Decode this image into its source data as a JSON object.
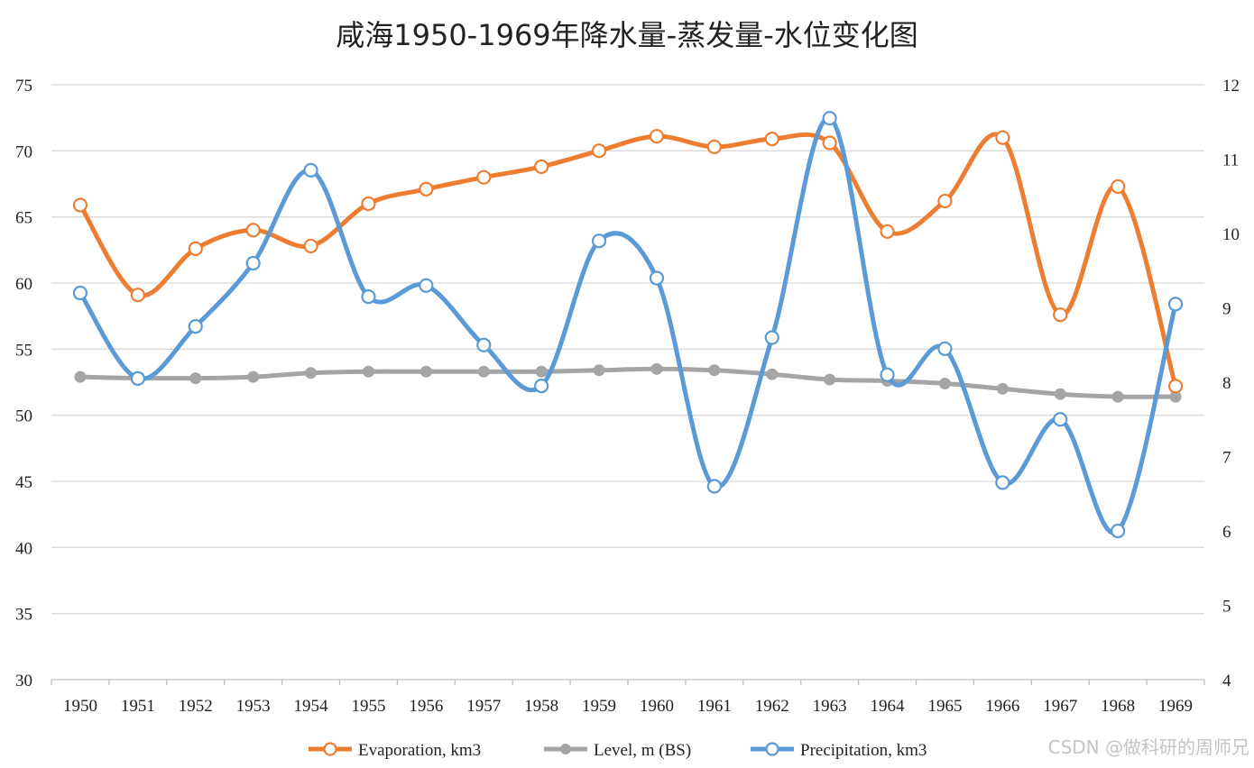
{
  "chart_data": {
    "type": "line",
    "title": "咸海1950-1969年降水量-蒸发量-水位变化图",
    "categories": [
      "1950",
      "1951",
      "1952",
      "1953",
      "1954",
      "1955",
      "1956",
      "1957",
      "1958",
      "1959",
      "1960",
      "1961",
      "1962",
      "1963",
      "1964",
      "1965",
      "1966",
      "1967",
      "1968",
      "1969"
    ],
    "y_left": {
      "min": 30,
      "max": 75,
      "ticks": [
        30,
        35,
        40,
        45,
        50,
        55,
        60,
        65,
        70,
        75
      ]
    },
    "y_right": {
      "min": 4,
      "max": 12,
      "ticks": [
        4,
        5,
        6,
        7,
        8,
        9,
        10,
        11,
        12
      ]
    },
    "grid": true,
    "legend_position": "bottom",
    "series": [
      {
        "name": "Evaporation, km3",
        "axis": "left",
        "color": "#ed7d31",
        "marker": "hollow-circle",
        "values": [
          65.9,
          59.1,
          62.6,
          64.0,
          62.8,
          66.0,
          67.1,
          68.0,
          68.8,
          70.0,
          71.1,
          70.3,
          70.9,
          70.6,
          63.9,
          66.2,
          71.0,
          57.6,
          67.3,
          52.2
        ]
      },
      {
        "name": "Level, m (BS)",
        "axis": "left",
        "color": "#a5a5a5",
        "marker": "filled-circle",
        "values": [
          52.9,
          52.8,
          52.8,
          52.9,
          53.2,
          53.3,
          53.3,
          53.3,
          53.3,
          53.4,
          53.5,
          53.4,
          53.1,
          52.7,
          52.6,
          52.4,
          52.0,
          51.6,
          51.4,
          51.4
        ]
      },
      {
        "name": "Precipitation, km3",
        "axis": "right",
        "color": "#5b9bd5",
        "marker": "hollow-circle",
        "values": [
          9.2,
          8.05,
          8.75,
          9.6,
          10.85,
          9.15,
          9.3,
          8.5,
          7.95,
          9.9,
          9.4,
          6.6,
          8.6,
          11.55,
          8.1,
          8.45,
          6.65,
          7.5,
          6.0,
          9.05
        ]
      }
    ]
  },
  "watermark": "CSDN @做科研的周师兄"
}
